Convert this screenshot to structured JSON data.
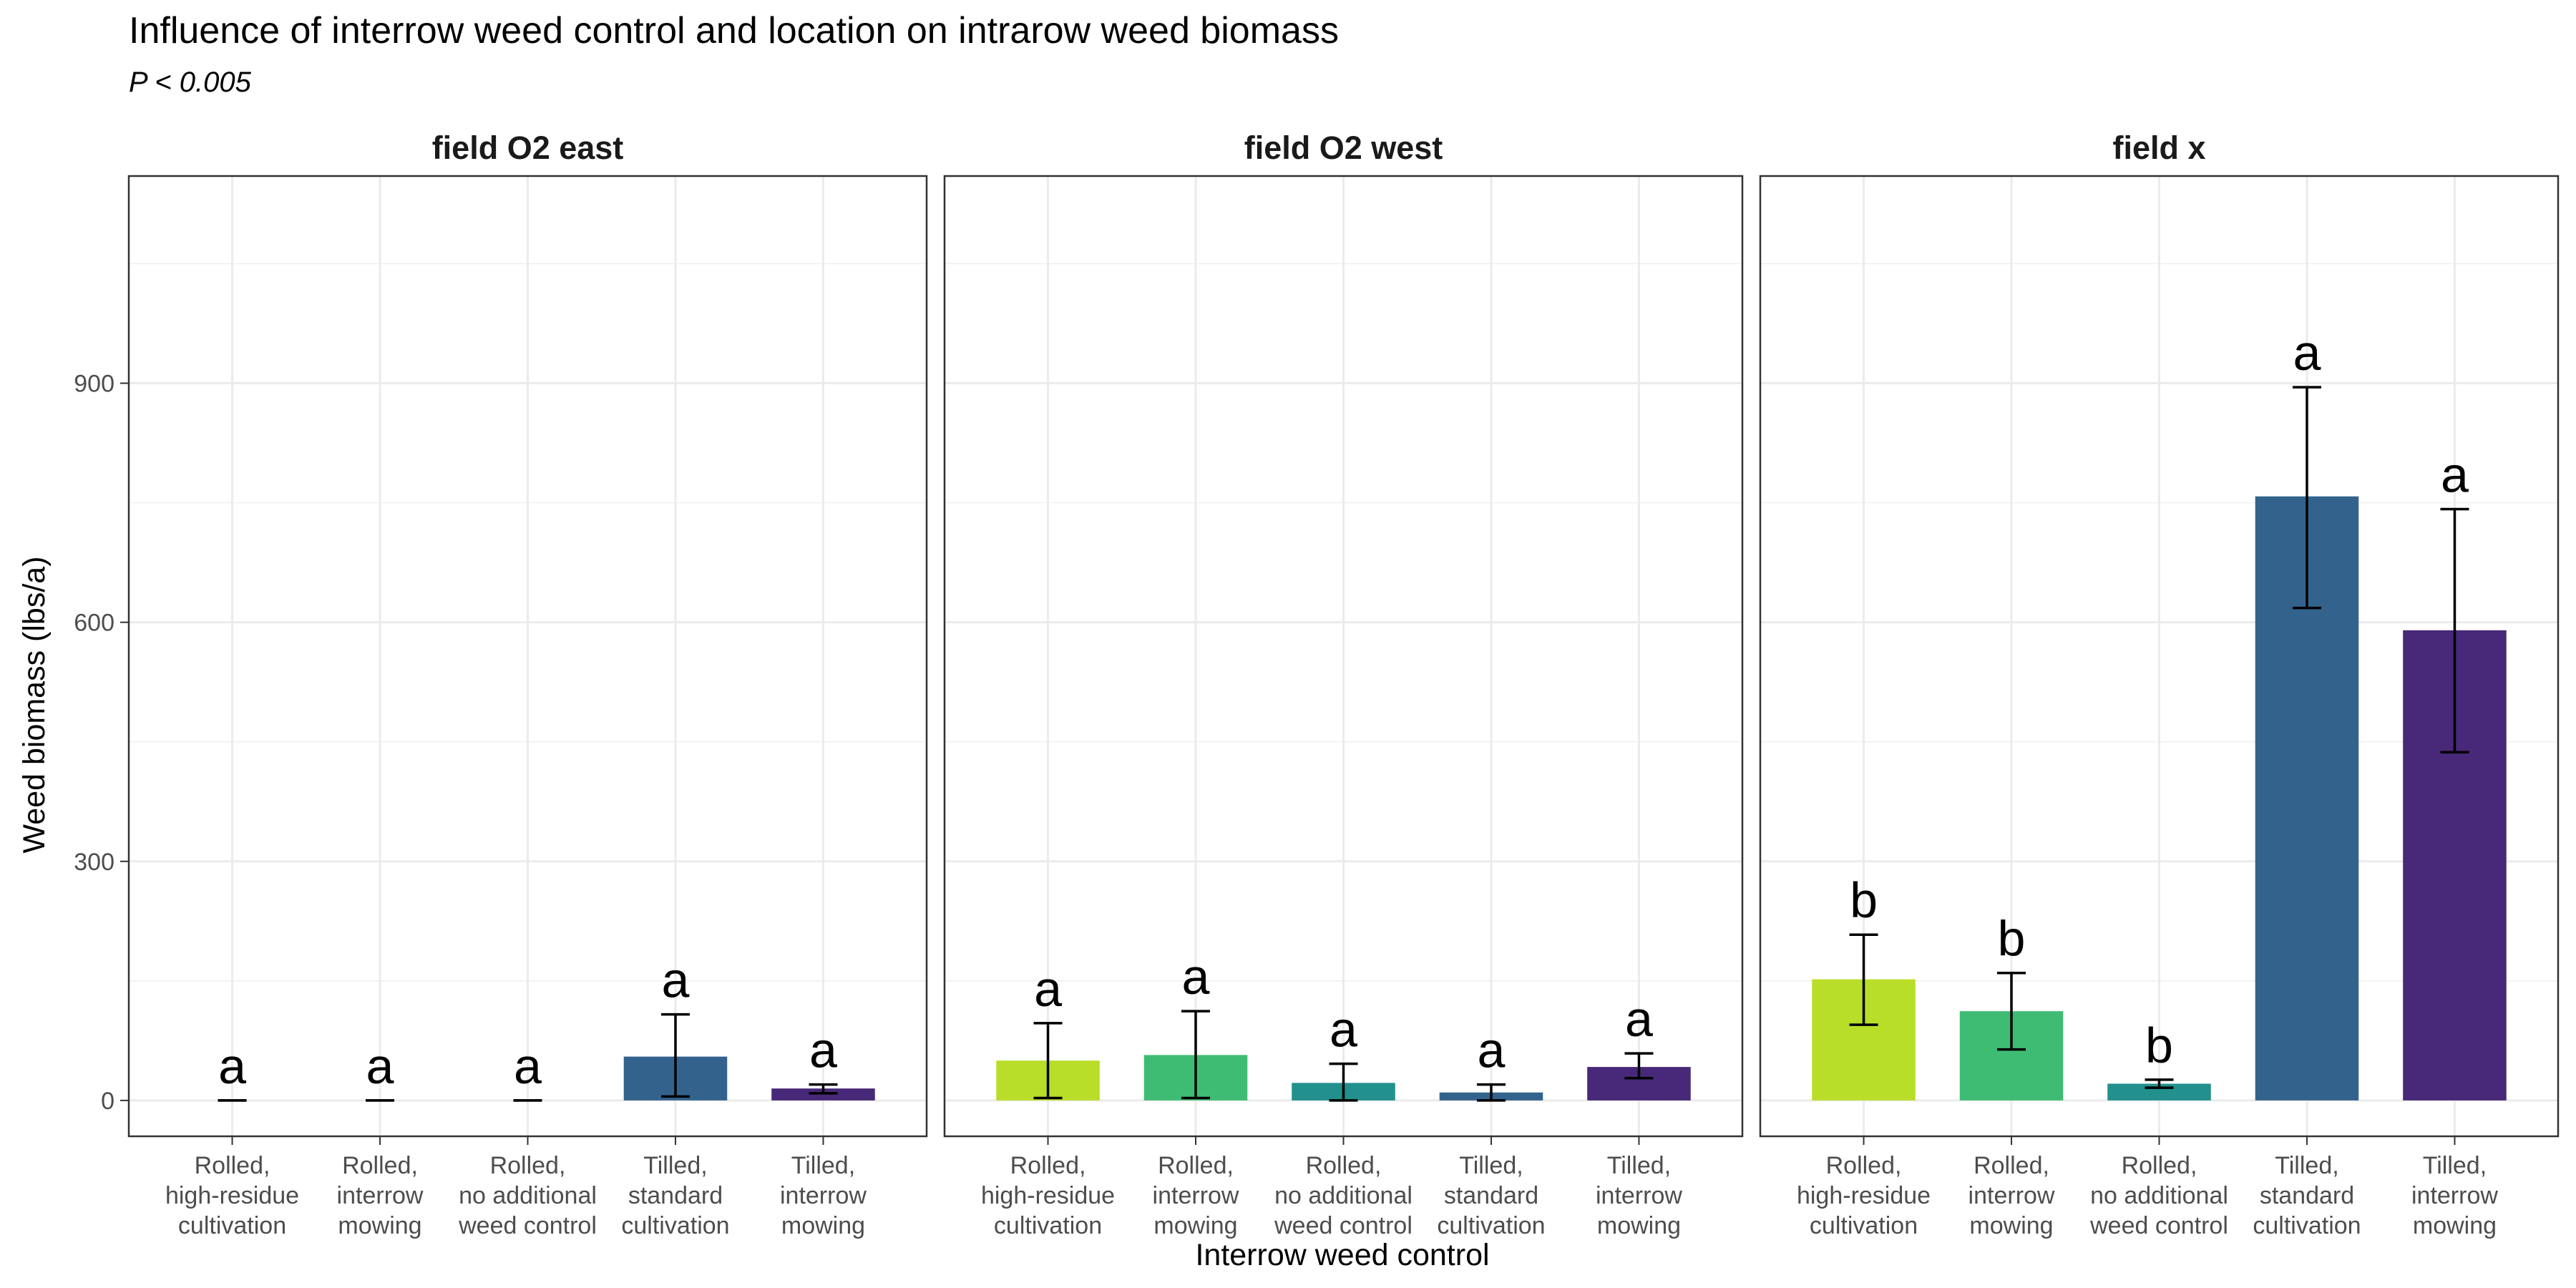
{
  "chart_data": {
    "type": "bar",
    "title": "Influence of interrow weed control and location on intrarow weed biomass",
    "subtitle": "P < 0.005",
    "xlabel": "Interrow weed control",
    "ylabel": "Weed biomass (lbs/a)",
    "ylim": [
      -45,
      1160
    ],
    "yticks": [
      0,
      300,
      600,
      900
    ],
    "grid": true,
    "categories": [
      [
        "Rolled,",
        "high-residue",
        "cultivation"
      ],
      [
        "Rolled,",
        "interrow",
        "mowing"
      ],
      [
        "Rolled,",
        "no additional",
        "weed control"
      ],
      [
        "Tilled,",
        "standard",
        "cultivation"
      ],
      [
        "Tilled,",
        "interrow",
        "mowing"
      ]
    ],
    "colors": [
      "#B8DE29",
      "#3FBC73",
      "#22908C",
      "#33638D",
      "#482878"
    ],
    "panels": [
      {
        "name": "field O2 east",
        "values": [
          0,
          0,
          0,
          55,
          15
        ],
        "error_low": [
          0,
          0,
          0,
          5,
          9
        ],
        "error_high": [
          0,
          0,
          0,
          108,
          20
        ],
        "letters": [
          "a",
          "a",
          "a",
          "a",
          "a"
        ]
      },
      {
        "name": "field O2 west",
        "values": [
          50,
          57,
          22,
          10,
          42
        ],
        "error_low": [
          3,
          3,
          0,
          0,
          28
        ],
        "error_high": [
          97,
          112,
          46,
          20,
          59
        ],
        "letters": [
          "a",
          "a",
          "a",
          "a",
          "a"
        ]
      },
      {
        "name": "field x",
        "values": [
          152,
          112,
          21,
          758,
          590
        ],
        "error_low": [
          95,
          64,
          16,
          618,
          437
        ],
        "error_high": [
          208,
          160,
          26,
          895,
          742
        ],
        "letters": [
          "b",
          "b",
          "b",
          "a",
          "a"
        ]
      }
    ]
  }
}
